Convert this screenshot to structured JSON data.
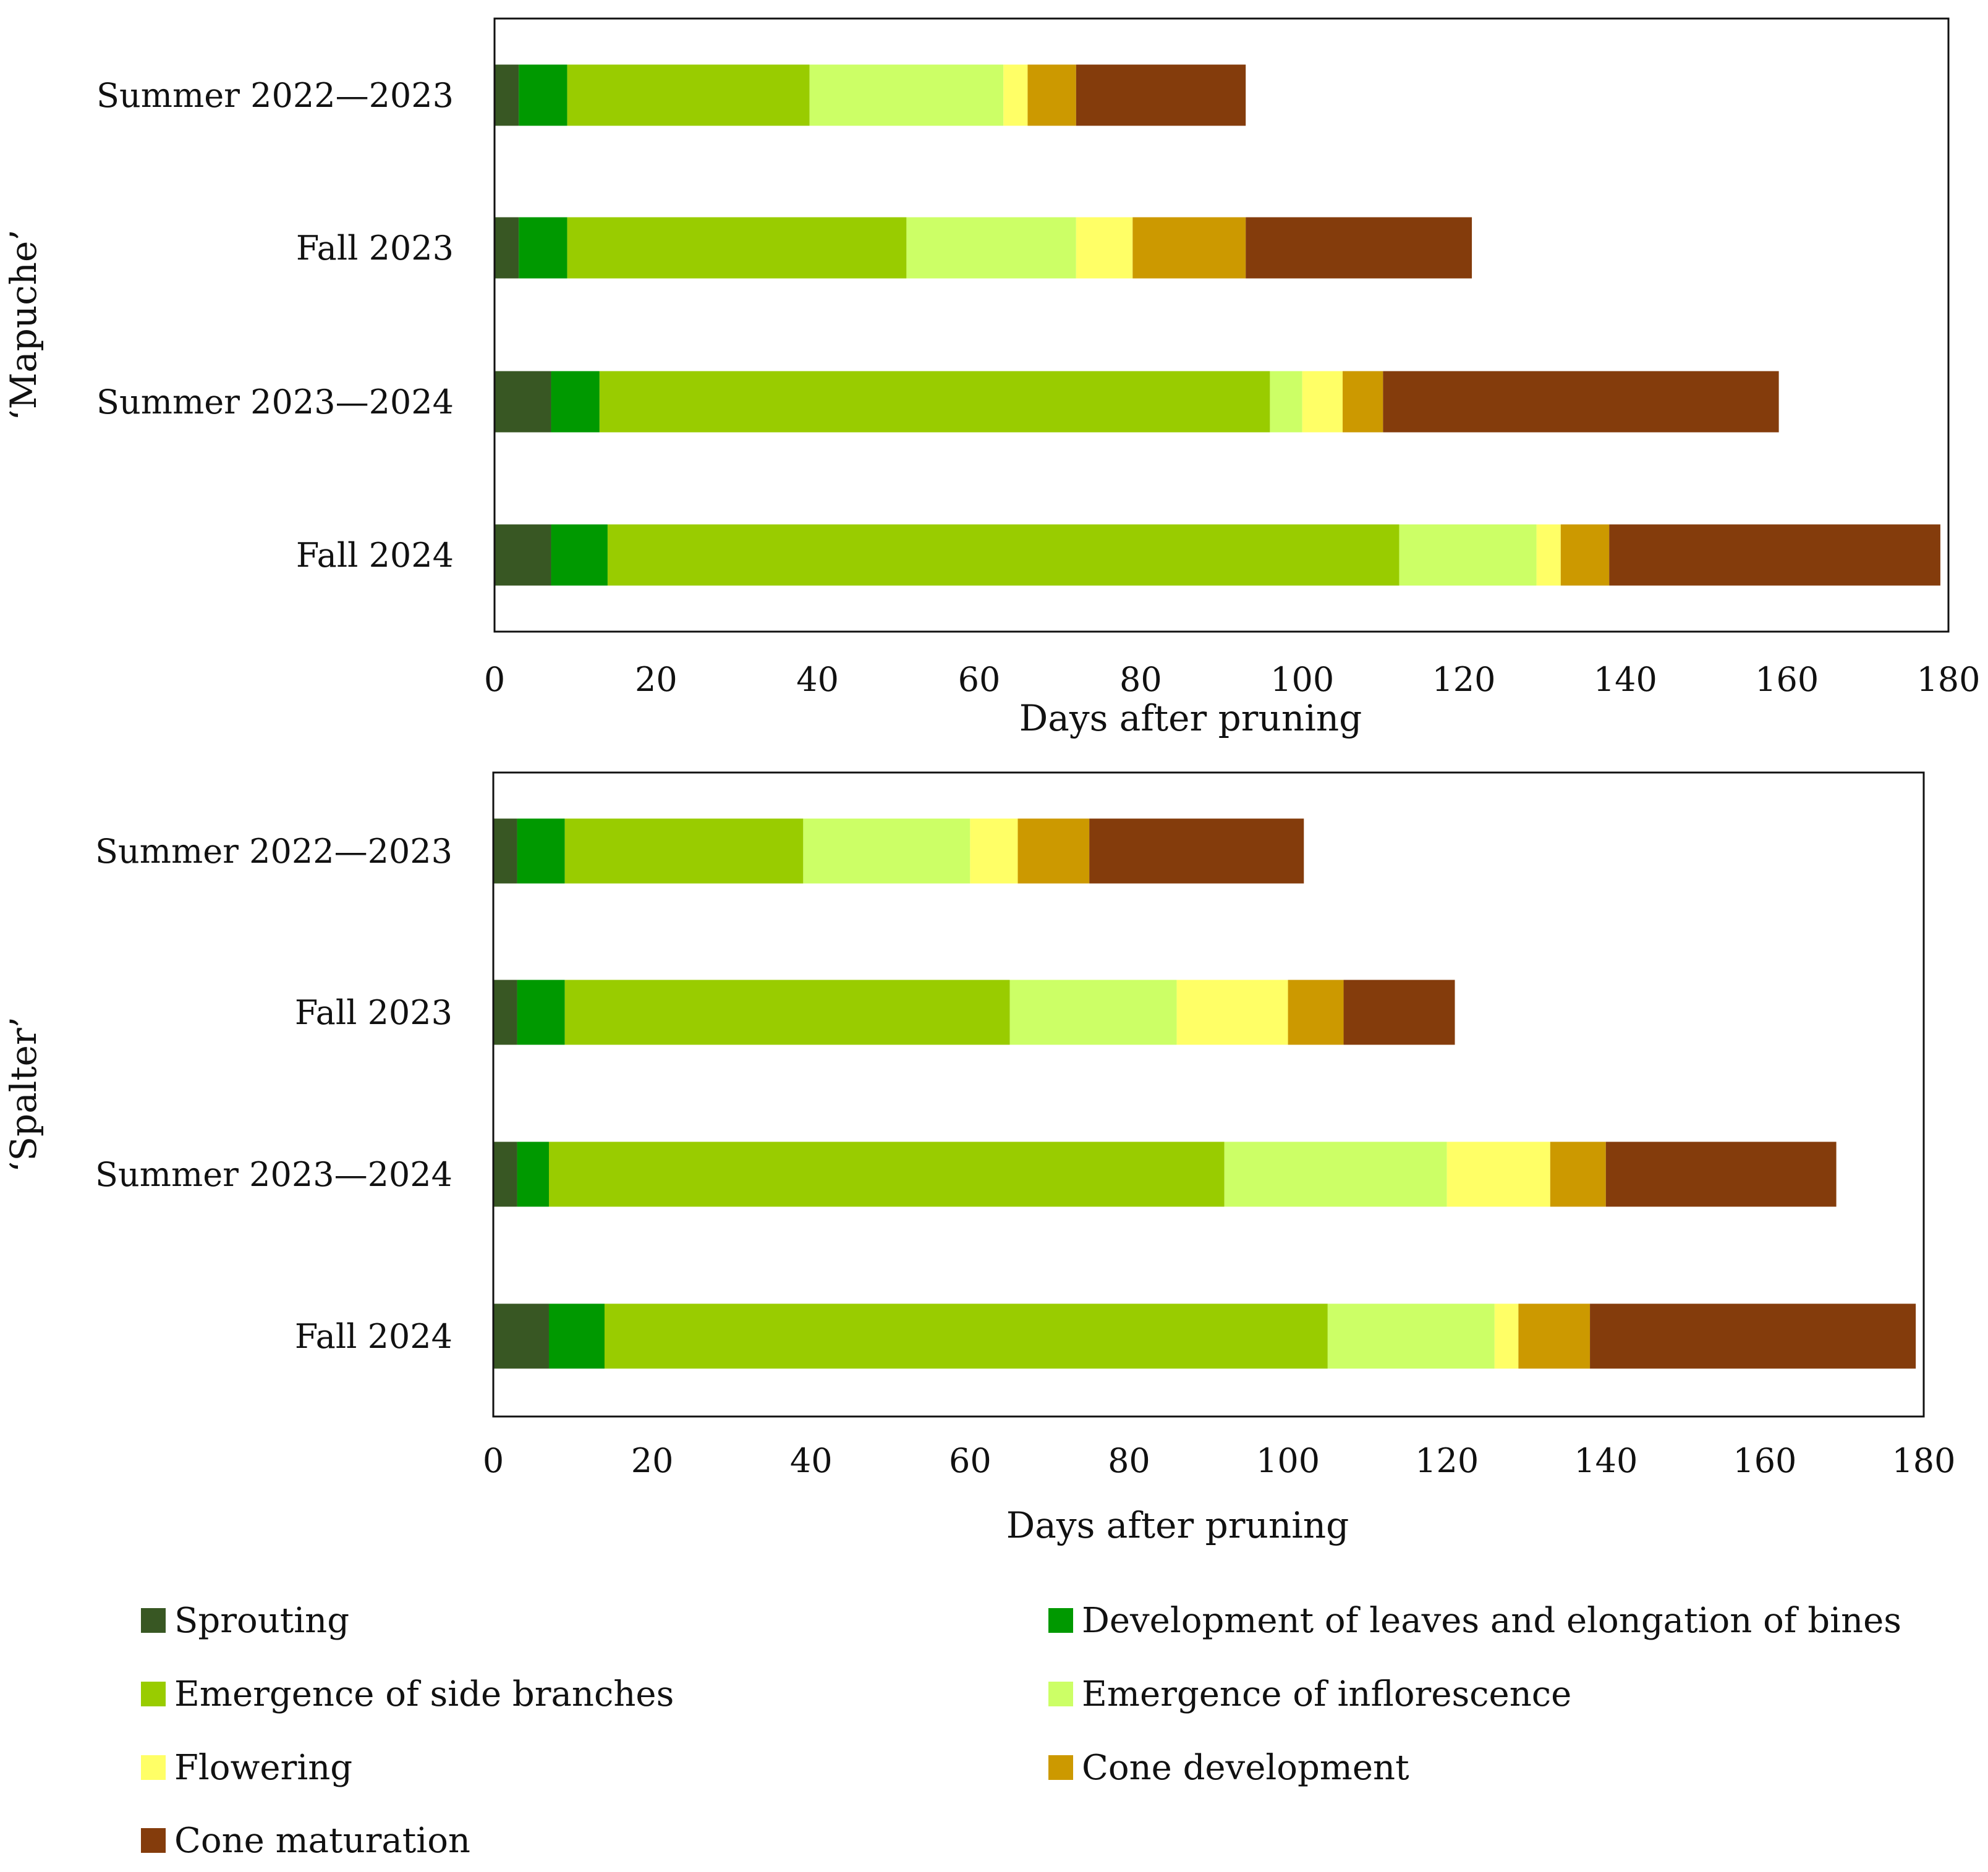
{
  "chart_data": [
    {
      "type": "bar",
      "orientation": "horizontal",
      "stacked": true,
      "ylabel": "‘Mapuche’",
      "xlabel": "Days after pruning",
      "xlim": [
        0,
        180
      ],
      "xticks": [
        0,
        20,
        40,
        60,
        80,
        100,
        120,
        140,
        160,
        180
      ],
      "categories": [
        "Summer 2022—2023",
        "Fall 2023",
        "Summer 2023—2024",
        "Fall 2024"
      ],
      "series": [
        {
          "name": "Sprouting",
          "color": "#385723",
          "values": [
            3,
            3,
            7,
            7
          ]
        },
        {
          "name": "Development of leaves and elongation of bines",
          "color": "#009900",
          "values": [
            6,
            6,
            6,
            7
          ]
        },
        {
          "name": "Emergence of side branches",
          "color": "#99CC00",
          "values": [
            30,
            42,
            83,
            98
          ]
        },
        {
          "name": "Emergence of inflorescence",
          "color": "#CCFF66",
          "values": [
            24,
            21,
            4,
            17
          ]
        },
        {
          "name": "Flowering",
          "color": "#FFFF66",
          "values": [
            3,
            7,
            5,
            3
          ]
        },
        {
          "name": "Cone development",
          "color": "#CC9900",
          "values": [
            6,
            14,
            5,
            6
          ]
        },
        {
          "name": "Cone maturation",
          "color": "#843C0C",
          "values": [
            21,
            28,
            49,
            41
          ]
        }
      ]
    },
    {
      "type": "bar",
      "orientation": "horizontal",
      "stacked": true,
      "ylabel": "‘Spalter’",
      "xlabel": "Days after pruning",
      "xlim": [
        0,
        180
      ],
      "xticks": [
        0,
        20,
        40,
        60,
        80,
        100,
        120,
        140,
        160,
        180
      ],
      "categories": [
        "Summer 2022—2023",
        "Fall 2023",
        "Summer 2023—2024",
        "Fall 2024"
      ],
      "series": [
        {
          "name": "Sprouting",
          "color": "#385723",
          "values": [
            3,
            3,
            3,
            7
          ]
        },
        {
          "name": "Development of leaves and elongation of bines",
          "color": "#009900",
          "values": [
            6,
            6,
            4,
            7
          ]
        },
        {
          "name": "Emergence of side branches",
          "color": "#99CC00",
          "values": [
            30,
            56,
            85,
            91
          ]
        },
        {
          "name": "Emergence of inflorescence",
          "color": "#CCFF66",
          "values": [
            21,
            21,
            28,
            21
          ]
        },
        {
          "name": "Flowering",
          "color": "#FFFF66",
          "values": [
            6,
            14,
            13,
            3
          ]
        },
        {
          "name": "Cone development",
          "color": "#CC9900",
          "values": [
            9,
            7,
            7,
            9
          ]
        },
        {
          "name": "Cone maturation",
          "color": "#843C0C",
          "values": [
            27,
            14,
            29,
            41
          ]
        }
      ]
    }
  ],
  "legend": {
    "placement": "bottom",
    "items": [
      {
        "label": "Sprouting",
        "color": "#385723"
      },
      {
        "label": "Development of leaves and elongation of bines",
        "color": "#009900"
      },
      {
        "label": "Emergence of side branches",
        "color": "#99CC00"
      },
      {
        "label": "Emergence of inflorescence",
        "color": "#CCFF66"
      },
      {
        "label": "Flowering",
        "color": "#FFFF66"
      },
      {
        "label": "Cone development",
        "color": "#CC9900"
      },
      {
        "label": "Cone maturation",
        "color": "#843C0C"
      }
    ]
  }
}
